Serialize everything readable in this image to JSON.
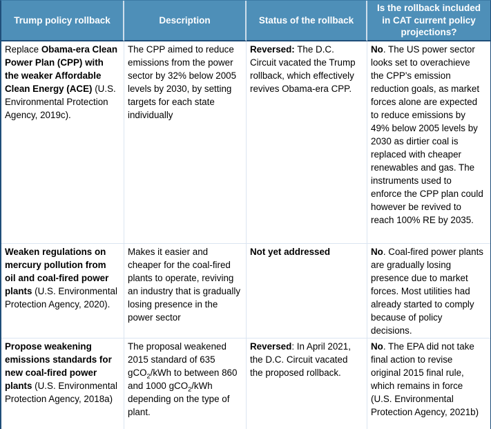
{
  "table": {
    "colors": {
      "header_bg": "#4e8fb8",
      "dark_border": "#1f4e79",
      "light_border": "#dbe5f1",
      "header_divider": "#cfdfec",
      "header_text": "#ffffff",
      "body_text": "#000000"
    },
    "headers": [
      "Trump policy rollback",
      "Description",
      "Status of the rollback",
      "Is the rollback included in CAT current policy projections?"
    ],
    "rows": [
      {
        "policy": [
          {
            "t": "Replace ",
            "b": false
          },
          {
            "t": "Obama-era Clean Power Plan (CPP) with the weaker Affordable Clean Energy (ACE)",
            "b": true
          },
          {
            "t": " (U.S. Environmental Protection Agency, 2019c).",
            "b": false
          }
        ],
        "description": [
          {
            "t": "The CPP aimed to reduce emissions from the power sector by 32% below 2005 levels by 2030, by setting targets for each state individually",
            "b": false
          }
        ],
        "status": [
          {
            "t": "Reversed:",
            "b": true
          },
          {
            "t": " The D.C. Circuit vacated the Trump rollback, which effectively revives Obama-era CPP.",
            "b": false
          }
        ],
        "cat": [
          {
            "t": "No",
            "b": true
          },
          {
            "t": ". The US power sector looks set to overachieve the CPP's emission reduction goals, as market forces alone are expected to reduce emissions by 49% below 2005 levels by 2030 as dirtier coal is replaced with cheaper renewables and gas. The instruments used to enforce the CPP plan could however be revived to reach 100% RE by 2035.",
            "b": false
          }
        ]
      },
      {
        "policy": [
          {
            "t": "Weaken regulations on mercury pollution from oil and coal-fired power plants",
            "b": true
          },
          {
            "t": " (U.S. Environmental Protection Agency, 2020).",
            "b": false
          }
        ],
        "description": [
          {
            "t": "Makes it easier and cheaper for the coal-fired plants to operate, reviving an industry that is gradually losing presence in the power sector",
            "b": false
          }
        ],
        "status": [
          {
            "t": "Not yet addressed",
            "b": true
          }
        ],
        "cat": [
          {
            "t": "No",
            "b": true
          },
          {
            "t": ". Coal-fired power plants are gradually losing presence due to market forces. Most utilities had already started to comply because of policy decisions.",
            "b": false
          }
        ]
      },
      {
        "policy": [
          {
            "t": "Propose weakening emissions standards for new coal-fired power plants",
            "b": true
          },
          {
            "t": " (U.S. Environmental Protection Agency, 2018a)",
            "b": false
          }
        ],
        "description": [
          {
            "t": "The proposal weakened 2015 standard of 635 gCO",
            "b": false
          },
          {
            "t": "2",
            "b": false,
            "sub": true
          },
          {
            "t": "/kWh to between 860 and 1000 gCO",
            "b": false
          },
          {
            "t": "2",
            "b": false,
            "sub": true
          },
          {
            "t": "/kWh depending on the type of plant.",
            "b": false
          }
        ],
        "status": [
          {
            "t": "Reversed",
            "b": true
          },
          {
            "t": ": In April 2021, the D.C. Circuit vacated the proposed rollback.",
            "b": false
          }
        ],
        "cat": [
          {
            "t": "No",
            "b": true
          },
          {
            "t": ". The EPA did not take final action to revise original 2015 final rule, which remains in force (U.S. Environmental Protection Agency, 2021b)",
            "b": false
          }
        ]
      }
    ]
  }
}
